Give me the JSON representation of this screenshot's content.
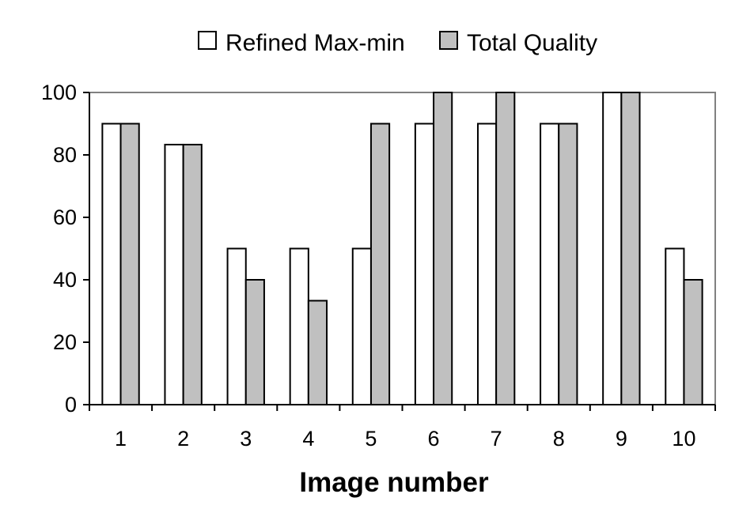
{
  "chart_data": {
    "type": "bar",
    "title": "",
    "xlabel": "Image number",
    "ylabel": "",
    "categories": [
      "1",
      "2",
      "3",
      "4",
      "5",
      "6",
      "7",
      "8",
      "9",
      "10"
    ],
    "series": [
      {
        "name": "Refined Max-min",
        "values": [
          90,
          83.3,
          50,
          50,
          50,
          90,
          90,
          90,
          100,
          50
        ],
        "color": "#ffffff"
      },
      {
        "name": "Total Quality",
        "values": [
          90,
          83.3,
          40,
          33.3,
          90,
          100,
          100,
          90,
          100,
          40
        ],
        "color": "#c0c0c0"
      }
    ],
    "ylim": [
      0,
      100
    ],
    "yticks": [
      0,
      20,
      40,
      60,
      80,
      100
    ],
    "ytick_labels": [
      "0",
      "20",
      "40",
      "60",
      "80",
      "100"
    ],
    "grid": false,
    "legend_position": "top",
    "plot_border_color": "#808080",
    "bar_outline_color": "#000000"
  }
}
